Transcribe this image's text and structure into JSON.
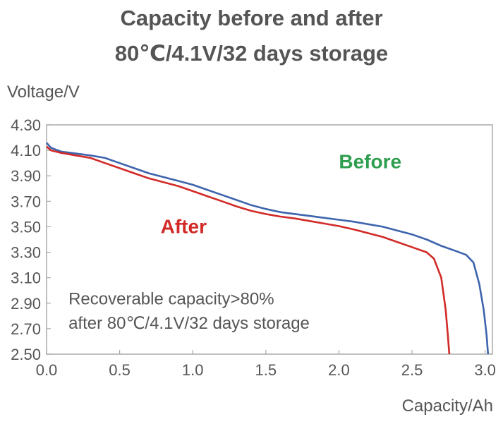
{
  "title_line1": "Capacity before and after",
  "title_line2": "80℃/4.1V/32 days storage",
  "chart_data": {
    "type": "line",
    "title": "Capacity before and after 80℃/4.1V/32 days storage",
    "xlabel": "Capacity/Ah",
    "ylabel": "Voltage/V",
    "xlim": [
      0.0,
      3.05
    ],
    "ylim": [
      2.5,
      4.3
    ],
    "xticks": [
      "0.0",
      "0.5",
      "1.0",
      "1.5",
      "2.0",
      "2.5",
      "3.0"
    ],
    "yticks": [
      "4.30",
      "4.10",
      "3.90",
      "3.70",
      "3.50",
      "3.30",
      "3.10",
      "2.90",
      "2.70",
      "2.50"
    ],
    "grid": false,
    "series": [
      {
        "name": "Before",
        "color": "#3d64ad",
        "points": [
          [
            0.0,
            4.16
          ],
          [
            0.03,
            4.12
          ],
          [
            0.1,
            4.09
          ],
          [
            0.2,
            4.075
          ],
          [
            0.3,
            4.06
          ],
          [
            0.4,
            4.04
          ],
          [
            0.5,
            4.0
          ],
          [
            0.6,
            3.96
          ],
          [
            0.7,
            3.92
          ],
          [
            0.8,
            3.89
          ],
          [
            0.9,
            3.86
          ],
          [
            1.0,
            3.83
          ],
          [
            1.1,
            3.79
          ],
          [
            1.2,
            3.75
          ],
          [
            1.3,
            3.71
          ],
          [
            1.4,
            3.67
          ],
          [
            1.5,
            3.64
          ],
          [
            1.6,
            3.615
          ],
          [
            1.7,
            3.6
          ],
          [
            1.8,
            3.585
          ],
          [
            1.9,
            3.57
          ],
          [
            2.0,
            3.555
          ],
          [
            2.1,
            3.54
          ],
          [
            2.2,
            3.52
          ],
          [
            2.3,
            3.5
          ],
          [
            2.4,
            3.47
          ],
          [
            2.5,
            3.44
          ],
          [
            2.6,
            3.4
          ],
          [
            2.7,
            3.35
          ],
          [
            2.8,
            3.31
          ],
          [
            2.87,
            3.28
          ],
          [
            2.92,
            3.22
          ],
          [
            2.96,
            3.05
          ],
          [
            2.99,
            2.85
          ],
          [
            3.01,
            2.65
          ],
          [
            3.02,
            2.5
          ]
        ]
      },
      {
        "name": "After",
        "color": "#d12a27",
        "points": [
          [
            0.0,
            4.13
          ],
          [
            0.03,
            4.1
          ],
          [
            0.1,
            4.08
          ],
          [
            0.2,
            4.06
          ],
          [
            0.3,
            4.04
          ],
          [
            0.4,
            4.0
          ],
          [
            0.5,
            3.96
          ],
          [
            0.6,
            3.92
          ],
          [
            0.7,
            3.88
          ],
          [
            0.8,
            3.85
          ],
          [
            0.9,
            3.82
          ],
          [
            1.0,
            3.78
          ],
          [
            1.1,
            3.74
          ],
          [
            1.2,
            3.7
          ],
          [
            1.3,
            3.66
          ],
          [
            1.4,
            3.625
          ],
          [
            1.5,
            3.6
          ],
          [
            1.6,
            3.58
          ],
          [
            1.7,
            3.565
          ],
          [
            1.8,
            3.545
          ],
          [
            1.9,
            3.525
          ],
          [
            2.0,
            3.505
          ],
          [
            2.1,
            3.48
          ],
          [
            2.2,
            3.45
          ],
          [
            2.3,
            3.42
          ],
          [
            2.4,
            3.38
          ],
          [
            2.5,
            3.34
          ],
          [
            2.6,
            3.3
          ],
          [
            2.65,
            3.25
          ],
          [
            2.7,
            3.1
          ],
          [
            2.73,
            2.85
          ],
          [
            2.745,
            2.65
          ],
          [
            2.755,
            2.5
          ]
        ]
      }
    ],
    "annotations": [
      {
        "text": "Before",
        "color": "#2e9e4f",
        "x": 2.0,
        "y": 3.96
      },
      {
        "text": "After",
        "color": "#d12a27",
        "x": 0.78,
        "y": 3.45
      },
      {
        "text": "Recoverable  capacity>80%",
        "color": "#555555",
        "x": 0.15,
        "y": 2.89
      },
      {
        "text": "after 80℃/4.1V/32 days storage",
        "color": "#555555",
        "x": 0.15,
        "y": 2.7
      }
    ]
  }
}
